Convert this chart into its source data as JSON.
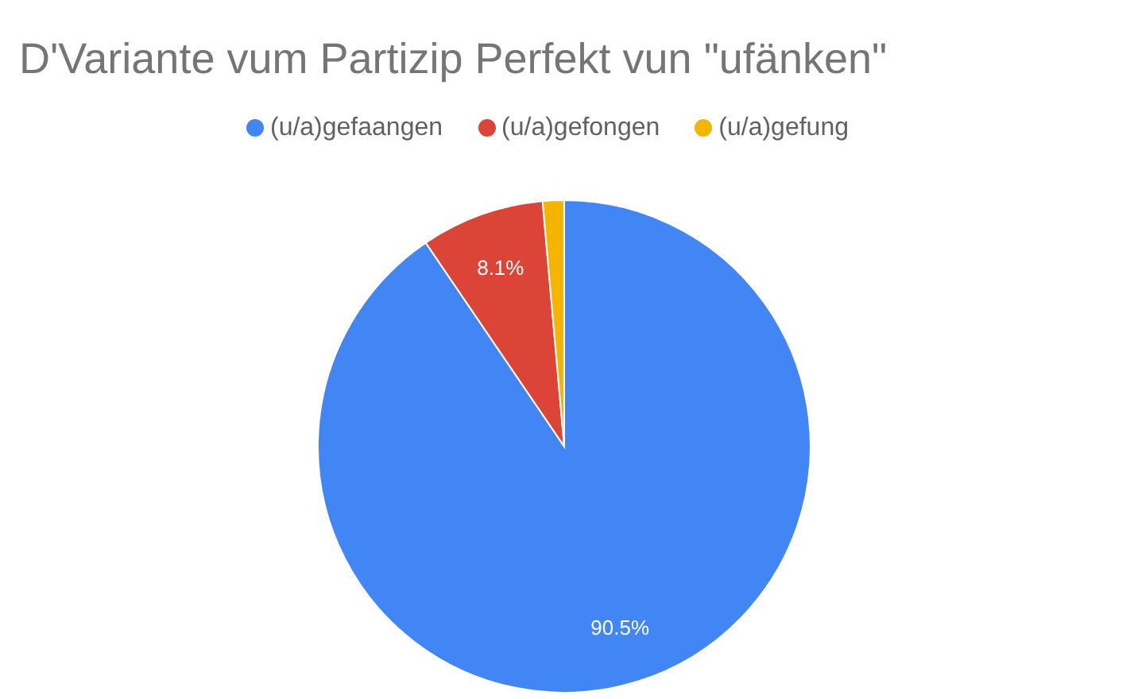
{
  "chart_data": {
    "type": "pie",
    "title": "D'Variante vum Partizip Perfekt vun \"ufänken\"",
    "categories": [
      "(u/a)gefaangen",
      "(u/a)gefongen",
      "(u/a)gefung"
    ],
    "values": [
      90.5,
      8.1,
      1.4
    ],
    "colors": [
      "#4285f4",
      "#db4437",
      "#f4b400"
    ],
    "value_labels": [
      "90.5%",
      "8.1%",
      null
    ],
    "legend": "top"
  }
}
